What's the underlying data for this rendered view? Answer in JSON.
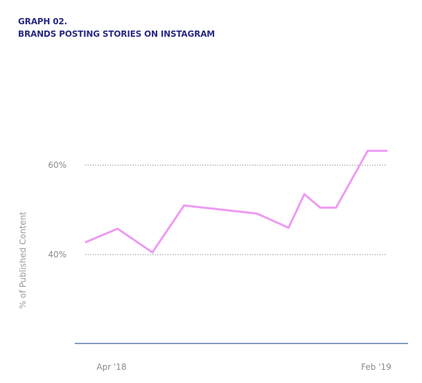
{
  "header": {
    "graph_number": "GRAPH 02.",
    "title": "BRANDS POSTING STORIES ON INSTAGRAM"
  },
  "colors": {
    "title": "#2b2a86",
    "line": "#ee9af3",
    "grid": "#8a8a8a",
    "baseline": "#3a5a9a",
    "tick_text": "#8a8a8a"
  },
  "chart_data": {
    "type": "line",
    "title": "BRANDS POSTING STORIES ON INSTAGRAM",
    "ylabel": "% of Published Content",
    "xlabel": "",
    "ylim": [
      20,
      70
    ],
    "yticks": [
      {
        "value": 40,
        "label": "40%"
      },
      {
        "value": 60,
        "label": "60%"
      }
    ],
    "xtick_labels": [
      {
        "x": 1,
        "label": "Apr '18"
      },
      {
        "x": 11,
        "label": "Feb '19"
      }
    ],
    "grid": "dotted horizontal at 40% and 60%",
    "series": [
      {
        "x": [
          0,
          1,
          2,
          3,
          5,
          6,
          7,
          8,
          9,
          10,
          11
        ],
        "values": [
          42.8,
          45.8,
          40.5,
          51.0,
          49.2,
          46.0,
          53.5,
          50.5,
          50.5,
          63.2,
          63.2
        ],
        "x_fine": [
          0,
          1,
          2.1,
          3.1,
          5.4,
          6.4,
          6.9,
          7.4,
          7.9,
          8.9,
          9.5
        ]
      }
    ]
  }
}
